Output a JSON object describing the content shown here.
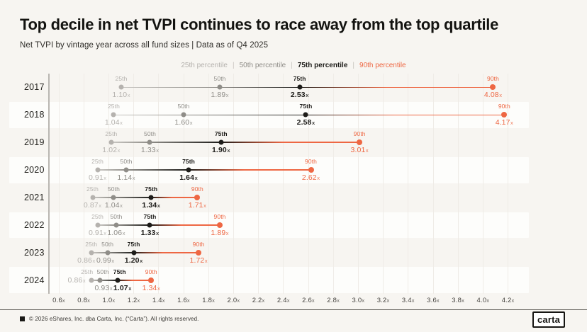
{
  "header": {
    "title": "Top decile in net TVPI continues to race away from the top quartile",
    "subtitle": "Net TVPI by vintage year across all fund sizes | Data as of Q4 2025"
  },
  "legend": {
    "separator": "|",
    "items": [
      {
        "label": "25th percentile",
        "color_key": "p25"
      },
      {
        "label": "50th percentile",
        "color_key": "p50"
      },
      {
        "label": "75th percentile",
        "color_key": "p75"
      },
      {
        "label": "90th percentile",
        "color_key": "p90"
      }
    ]
  },
  "colors": {
    "background": "#f7f5f1",
    "band": "#fdfdfb",
    "grid": "#efece7",
    "axis": "#b9b6b1",
    "p25": "#b5b2ae",
    "p50": "#8f8d88",
    "p75": "#1d1c19",
    "p90": "#ee6743"
  },
  "chart_data": {
    "type": "scatter",
    "title": "Top decile in net TVPI continues to race away from the top quartile",
    "subtitle": "Net TVPI by vintage year across all fund sizes | Data as of Q4 2025",
    "xlabel": "",
    "ylabel": "",
    "xlim": [
      0.5,
      4.35
    ],
    "grid": true,
    "legend_position": "top-center",
    "x_ticks": [
      0.6,
      0.8,
      1.0,
      1.2,
      1.4,
      1.6,
      1.8,
      2.0,
      2.2,
      2.4,
      2.6,
      2.8,
      3.0,
      3.2,
      3.4,
      3.6,
      3.8,
      4.0,
      4.2
    ],
    "tick_suffix": "x",
    "value_suffix": "x",
    "percentile_labels": [
      "25th",
      "50th",
      "75th",
      "90th"
    ],
    "rows": [
      {
        "year": "2017",
        "values": [
          1.1,
          1.89,
          2.53,
          4.08
        ]
      },
      {
        "year": "2018",
        "values": [
          1.04,
          1.6,
          2.58,
          4.17
        ]
      },
      {
        "year": "2019",
        "values": [
          1.02,
          1.33,
          1.9,
          3.01
        ]
      },
      {
        "year": "2020",
        "values": [
          0.91,
          1.14,
          1.64,
          2.62
        ]
      },
      {
        "year": "2021",
        "values": [
          0.87,
          1.04,
          1.34,
          1.71
        ]
      },
      {
        "year": "2022",
        "values": [
          0.91,
          1.06,
          1.33,
          1.89
        ]
      },
      {
        "year": "2023",
        "values": [
          0.86,
          0.99,
          1.2,
          1.72
        ],
        "val_dx": [
          -7,
          -3,
          0,
          0
        ]
      },
      {
        "year": "2024",
        "values": [
          0.86,
          0.93,
          1.07,
          1.34
        ],
        "val25_side": true,
        "val_dx": [
          0,
          5,
          7,
          0
        ],
        "top_dx": [
          -6,
          4,
          3,
          0
        ]
      }
    ]
  },
  "footer": {
    "note": "© 2026 eShares, Inc. dba Carta, Inc. (“Carta”). All rights reserved.",
    "logo": "carta"
  }
}
